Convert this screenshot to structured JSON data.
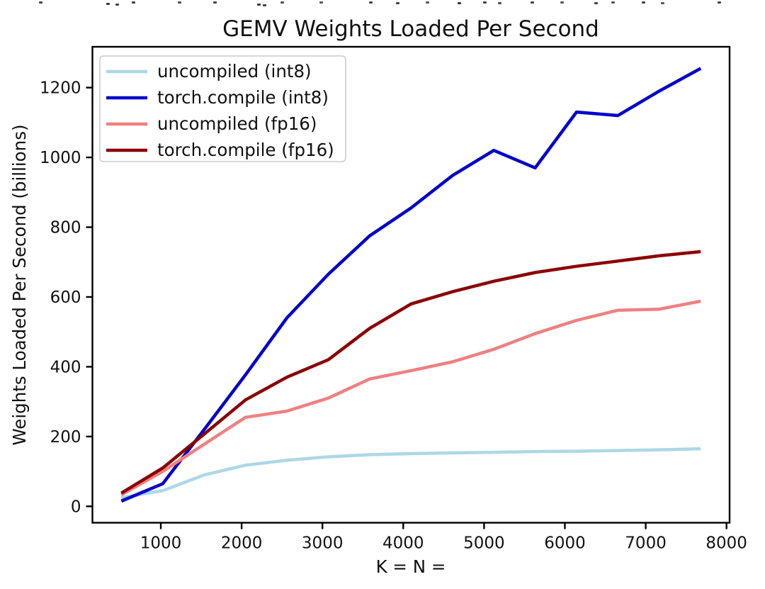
{
  "chart_data": {
    "type": "line",
    "title": "GEMV Weights Loaded Per Second",
    "xlabel": "K = N =",
    "ylabel": "Weights Loaded Per Second (billions)",
    "x": [
      512,
      1024,
      1536,
      2048,
      2560,
      3072,
      3584,
      4096,
      4608,
      5120,
      5632,
      6144,
      6656,
      7168,
      7680
    ],
    "series": [
      {
        "name": "uncompiled (int8)",
        "color": "#ADD8E6",
        "values": [
          25,
          45,
          90,
          118,
          132,
          142,
          148,
          151,
          153,
          155,
          157,
          158,
          160,
          162,
          165
        ]
      },
      {
        "name": "torch.compile (int8)",
        "color": "#0000CD",
        "values": [
          15,
          65,
          220,
          377,
          540,
          665,
          775,
          855,
          948,
          1020,
          970,
          1130,
          1120,
          1190,
          1255
        ]
      },
      {
        "name": "uncompiled (fp16)",
        "color": "#F08080",
        "values": [
          33,
          100,
          178,
          255,
          273,
          310,
          365,
          389,
          414,
          450,
          495,
          533,
          562,
          565,
          588
        ]
      },
      {
        "name": "torch.compile (fp16)",
        "color": "#8B0000",
        "values": [
          38,
          110,
          207,
          305,
          370,
          420,
          510,
          580,
          615,
          645,
          670,
          688,
          703,
          718,
          730
        ]
      }
    ],
    "xticks": [
      1000,
      2000,
      3000,
      4000,
      5000,
      6000,
      7000,
      8000
    ],
    "yticks": [
      0,
      200,
      400,
      600,
      800,
      1000,
      1200
    ],
    "xlim": [
      154,
      8038
    ],
    "ylim": [
      -47,
      1317
    ],
    "grid": false,
    "legend_position": "upper left"
  }
}
